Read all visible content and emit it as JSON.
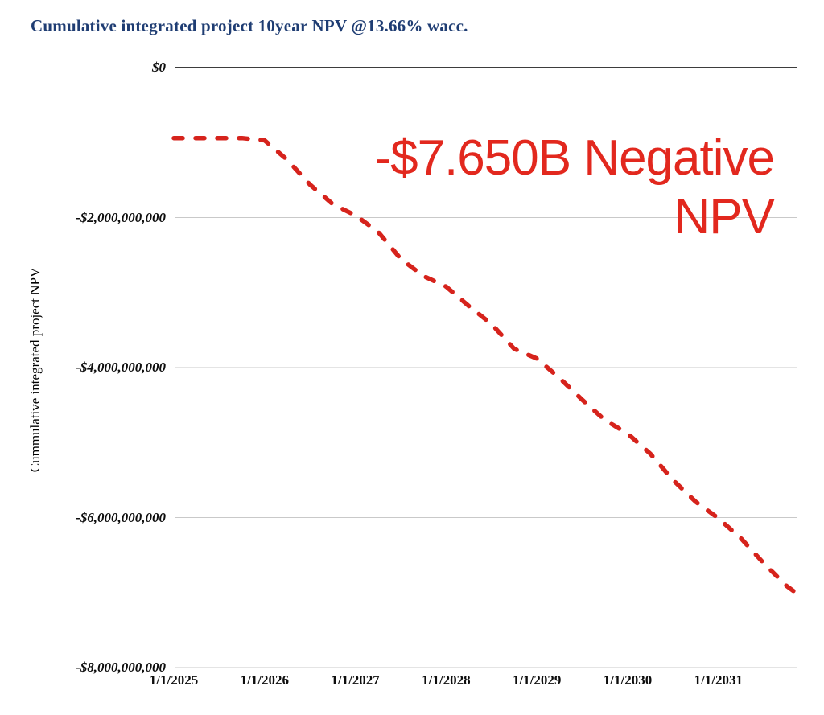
{
  "header": {
    "title": "Cumulative integrated project 10year NPV @13.66% wacc.",
    "title_color": "#1f3d73"
  },
  "annotation": {
    "line1": "-$7.650B Negative",
    "line2": "NPV",
    "color": "#e2281e"
  },
  "axes": {
    "y_title": "Cummulative integrated project NPV",
    "zero_line_color": "#3d3d3d",
    "grid_color": "#c9c9c9",
    "y_ticks": [
      {
        "label": "$0",
        "value": 0
      },
      {
        "label": "-$2,000,000,000",
        "value": -2000000000
      },
      {
        "label": "-$4,000,000,000",
        "value": -4000000000
      },
      {
        "label": "-$6,000,000,000",
        "value": -6000000000
      },
      {
        "label": "-$8,000,000,000",
        "value": -8000000000
      }
    ],
    "x_ticks": [
      {
        "label": "1/1/2025",
        "year": 2025
      },
      {
        "label": "1/1/2026",
        "year": 2026
      },
      {
        "label": "1/1/2027",
        "year": 2027
      },
      {
        "label": "1/1/2028",
        "year": 2028
      },
      {
        "label": "1/1/2029",
        "year": 2029
      },
      {
        "label": "1/1/2030",
        "year": 2030
      },
      {
        "label": "1/1/2031",
        "year": 2031
      }
    ]
  },
  "chart_data": {
    "type": "line",
    "title": "Cumulative integrated project 10year NPV @13.66% wacc.",
    "xlabel": "",
    "ylabel": "Cummulative integrated project NPV",
    "x_tick_labels": [
      "1/1/2025",
      "1/1/2026",
      "1/1/2027",
      "1/1/2028",
      "1/1/2029",
      "1/1/2030",
      "1/1/2031"
    ],
    "y_tick_labels": [
      "$0",
      "-$2,000,000,000",
      "-$4,000,000,000",
      "-$6,000,000,000",
      "-$8,000,000,000"
    ],
    "ylim": [
      -8000000000,
      0
    ],
    "xlim_years": [
      2025.0,
      2031.87
    ],
    "grid": "horizontal",
    "legend": "none",
    "units": "USD billions (series values)",
    "annotation_text": "-$7.650B Negative NPV",
    "series": [
      {
        "name": "Cumulative integrated project NPV",
        "color": "#d6231c",
        "line_style": "dashed",
        "points_year_valueB": [
          [
            2025.0,
            -0.94
          ],
          [
            2025.25,
            -0.94
          ],
          [
            2025.5,
            -0.94
          ],
          [
            2025.75,
            -0.94
          ],
          [
            2026.0,
            -0.97
          ],
          [
            2026.25,
            -1.23
          ],
          [
            2026.5,
            -1.56
          ],
          [
            2026.75,
            -1.82
          ],
          [
            2027.0,
            -1.97
          ],
          [
            2027.25,
            -2.19
          ],
          [
            2027.5,
            -2.55
          ],
          [
            2027.75,
            -2.78
          ],
          [
            2028.0,
            -2.92
          ],
          [
            2028.25,
            -3.18
          ],
          [
            2028.5,
            -3.42
          ],
          [
            2028.75,
            -3.75
          ],
          [
            2029.0,
            -3.88
          ],
          [
            2029.25,
            -4.14
          ],
          [
            2029.5,
            -4.43
          ],
          [
            2029.75,
            -4.7
          ],
          [
            2030.0,
            -4.88
          ],
          [
            2030.25,
            -5.15
          ],
          [
            2030.5,
            -5.5
          ],
          [
            2030.75,
            -5.79
          ],
          [
            2031.0,
            -6.01
          ],
          [
            2031.25,
            -6.28
          ],
          [
            2031.5,
            -6.61
          ],
          [
            2031.75,
            -6.91
          ],
          [
            2031.85,
            -7.0
          ]
        ]
      }
    ]
  }
}
